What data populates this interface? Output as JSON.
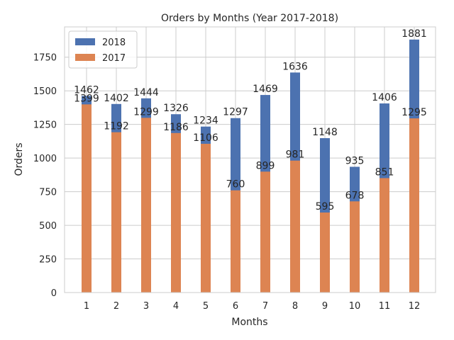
{
  "chart_data": {
    "type": "bar",
    "title": "Orders by Months (Year 2017-2018)",
    "xlabel": "Months",
    "ylabel": "Orders",
    "categories": [
      "1",
      "2",
      "3",
      "4",
      "5",
      "6",
      "7",
      "8",
      "9",
      "10",
      "11",
      "12"
    ],
    "ylim": [
      0,
      1975
    ],
    "yticks": [
      0,
      250,
      500,
      750,
      1000,
      1250,
      1500,
      1750
    ],
    "grid": true,
    "legend_position": "top-left",
    "series": [
      {
        "name": "2018",
        "color": "#4c72b0",
        "values": [
          1462,
          1402,
          1444,
          1326,
          1234,
          1297,
          1469,
          1636,
          1148,
          935,
          1406,
          1881
        ]
      },
      {
        "name": "2017",
        "color": "#dd8452",
        "values": [
          1399,
          1192,
          1299,
          1186,
          1106,
          760,
          899,
          981,
          595,
          678,
          851,
          1295
        ]
      }
    ]
  }
}
